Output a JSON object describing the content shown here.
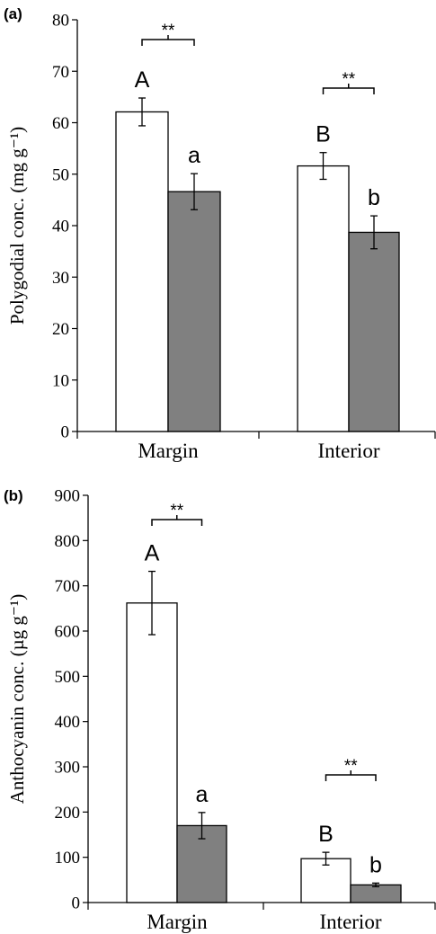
{
  "chart_data": [
    {
      "panel": "(a)",
      "type": "bar",
      "ylabel": "Polygodial conc. (mg g⁻¹)",
      "ylim": [
        0,
        80
      ],
      "yticks": [
        0,
        10,
        20,
        30,
        40,
        50,
        60,
        70,
        80
      ],
      "categories": [
        "Margin",
        "Interior"
      ],
      "series": [
        {
          "color": "#ffffff",
          "values": [
            62.1,
            51.6
          ],
          "errors": [
            2.7,
            2.6
          ],
          "letters": [
            "A",
            "B"
          ]
        },
        {
          "color": "#808080",
          "values": [
            46.6,
            38.7
          ],
          "errors": [
            3.5,
            3.2
          ],
          "letters": [
            "a",
            "b"
          ]
        }
      ],
      "significance": [
        "**",
        "**"
      ],
      "grid": false
    },
    {
      "panel": "(b)",
      "type": "bar",
      "ylabel": "Anthocyanin conc. (µg g⁻¹)",
      "ylim": [
        0,
        900
      ],
      "yticks": [
        0,
        100,
        200,
        300,
        400,
        500,
        600,
        700,
        800,
        900
      ],
      "categories": [
        "Margin",
        "Interior"
      ],
      "series": [
        {
          "color": "#ffffff",
          "values": [
            662,
            97
          ],
          "errors": [
            70,
            14
          ],
          "letters": [
            "A",
            "B"
          ]
        },
        {
          "color": "#808080",
          "values": [
            170,
            39
          ],
          "errors": [
            29,
            4
          ],
          "letters": [
            "a",
            "b"
          ]
        }
      ],
      "significance": [
        "**",
        "**"
      ],
      "grid": false
    }
  ]
}
